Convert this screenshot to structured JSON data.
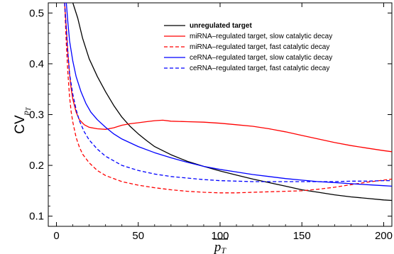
{
  "chart_data": {
    "type": "line",
    "title": "",
    "xlabel": "p_T (mean, overlined)",
    "ylabel": "CV_pT",
    "xlim": [
      -5,
      205
    ],
    "ylim": [
      0.08,
      0.52
    ],
    "xticks": [
      0,
      50,
      100,
      150,
      200
    ],
    "yticks": [
      0.1,
      0.2,
      0.3,
      0.4,
      0.5
    ],
    "xtick_labels": [
      "0",
      "50",
      "100",
      "150",
      "200"
    ],
    "ytick_labels": [
      "0.1",
      "0.2",
      "0.3",
      "0.4",
      "0.5"
    ],
    "legend_position": "top-right",
    "grid": false,
    "series": [
      {
        "name": "unregulated target",
        "color": "#000000",
        "style": "solid",
        "bold_label": true,
        "points": [
          [
            10,
            0.52
          ],
          [
            13,
            0.49
          ],
          [
            16,
            0.45
          ],
          [
            20,
            0.41
          ],
          [
            25,
            0.375
          ],
          [
            30,
            0.345
          ],
          [
            35,
            0.318
          ],
          [
            40,
            0.295
          ],
          [
            45,
            0.277
          ],
          [
            50,
            0.262
          ],
          [
            55,
            0.249
          ],
          [
            60,
            0.237
          ],
          [
            65,
            0.229
          ],
          [
            70,
            0.221
          ],
          [
            80,
            0.208
          ],
          [
            90,
            0.198
          ],
          [
            100,
            0.189
          ],
          [
            110,
            0.181
          ],
          [
            120,
            0.173
          ],
          [
            130,
            0.166
          ],
          [
            140,
            0.159
          ],
          [
            150,
            0.152
          ],
          [
            160,
            0.147
          ],
          [
            170,
            0.142
          ],
          [
            180,
            0.138
          ],
          [
            190,
            0.135
          ],
          [
            200,
            0.132
          ],
          [
            205,
            0.131
          ]
        ]
      },
      {
        "name": "miRNA–regulated target, slow catalytic decay",
        "color": "#ff0000",
        "style": "solid",
        "bold_label": false,
        "points": [
          [
            5,
            0.52
          ],
          [
            6,
            0.47
          ],
          [
            7,
            0.42
          ],
          [
            8,
            0.38
          ],
          [
            9,
            0.35
          ],
          [
            10,
            0.33
          ],
          [
            12,
            0.305
          ],
          [
            14,
            0.29
          ],
          [
            17,
            0.28
          ],
          [
            20,
            0.275
          ],
          [
            25,
            0.272
          ],
          [
            30,
            0.271
          ],
          [
            35,
            0.274
          ],
          [
            40,
            0.279
          ],
          [
            45,
            0.282
          ],
          [
            50,
            0.284
          ],
          [
            55,
            0.286
          ],
          [
            60,
            0.288
          ],
          [
            65,
            0.289
          ],
          [
            70,
            0.287
          ],
          [
            80,
            0.286
          ],
          [
            90,
            0.285
          ],
          [
            100,
            0.283
          ],
          [
            110,
            0.28
          ],
          [
            120,
            0.277
          ],
          [
            130,
            0.272
          ],
          [
            140,
            0.266
          ],
          [
            150,
            0.259
          ],
          [
            160,
            0.252
          ],
          [
            170,
            0.245
          ],
          [
            180,
            0.239
          ],
          [
            190,
            0.234
          ],
          [
            200,
            0.229
          ],
          [
            205,
            0.227
          ]
        ]
      },
      {
        "name": "miRNA–regulated target, fast catalytic decay",
        "color": "#ff0000",
        "style": "dashed",
        "bold_label": false,
        "points": [
          [
            5,
            0.52
          ],
          [
            6,
            0.44
          ],
          [
            7,
            0.38
          ],
          [
            8,
            0.335
          ],
          [
            9,
            0.305
          ],
          [
            10,
            0.285
          ],
          [
            12,
            0.255
          ],
          [
            14,
            0.236
          ],
          [
            16,
            0.222
          ],
          [
            20,
            0.205
          ],
          [
            25,
            0.19
          ],
          [
            30,
            0.18
          ],
          [
            40,
            0.168
          ],
          [
            50,
            0.161
          ],
          [
            60,
            0.156
          ],
          [
            70,
            0.152
          ],
          [
            80,
            0.149
          ],
          [
            90,
            0.147
          ],
          [
            100,
            0.146
          ],
          [
            110,
            0.146
          ],
          [
            120,
            0.147
          ],
          [
            130,
            0.148
          ],
          [
            140,
            0.149
          ],
          [
            150,
            0.15
          ],
          [
            160,
            0.153
          ],
          [
            170,
            0.157
          ],
          [
            180,
            0.162
          ],
          [
            190,
            0.167
          ],
          [
            200,
            0.171
          ],
          [
            205,
            0.173
          ]
        ]
      },
      {
        "name": "ceRNA–regulated target, slow catalytic decay",
        "color": "#0000ff",
        "style": "solid",
        "bold_label": false,
        "points": [
          [
            6,
            0.52
          ],
          [
            7,
            0.48
          ],
          [
            8,
            0.445
          ],
          [
            10,
            0.405
          ],
          [
            12,
            0.375
          ],
          [
            15,
            0.345
          ],
          [
            18,
            0.322
          ],
          [
            21,
            0.305
          ],
          [
            25,
            0.29
          ],
          [
            30,
            0.275
          ],
          [
            35,
            0.262
          ],
          [
            40,
            0.252
          ],
          [
            50,
            0.237
          ],
          [
            60,
            0.225
          ],
          [
            70,
            0.215
          ],
          [
            80,
            0.206
          ],
          [
            90,
            0.198
          ],
          [
            100,
            0.192
          ],
          [
            110,
            0.187
          ],
          [
            120,
            0.182
          ],
          [
            130,
            0.178
          ],
          [
            140,
            0.174
          ],
          [
            150,
            0.171
          ],
          [
            160,
            0.168
          ],
          [
            170,
            0.166
          ],
          [
            180,
            0.164
          ],
          [
            190,
            0.162
          ],
          [
            200,
            0.16
          ],
          [
            205,
            0.159
          ]
        ]
      },
      {
        "name": "ceRNA–regulated target, fast catalytic decay",
        "color": "#0000ff",
        "style": "dashed",
        "bold_label": false,
        "points": [
          [
            5,
            0.52
          ],
          [
            6,
            0.47
          ],
          [
            7,
            0.42
          ],
          [
            8,
            0.38
          ],
          [
            10,
            0.34
          ],
          [
            12,
            0.31
          ],
          [
            14,
            0.288
          ],
          [
            17,
            0.266
          ],
          [
            20,
            0.25
          ],
          [
            25,
            0.232
          ],
          [
            30,
            0.218
          ],
          [
            40,
            0.2
          ],
          [
            50,
            0.19
          ],
          [
            60,
            0.183
          ],
          [
            70,
            0.178
          ],
          [
            80,
            0.175
          ],
          [
            90,
            0.172
          ],
          [
            100,
            0.17
          ],
          [
            110,
            0.169
          ],
          [
            120,
            0.168
          ],
          [
            130,
            0.168
          ],
          [
            140,
            0.168
          ],
          [
            150,
            0.168
          ],
          [
            160,
            0.168
          ],
          [
            170,
            0.168
          ],
          [
            180,
            0.169
          ],
          [
            190,
            0.169
          ],
          [
            200,
            0.17
          ],
          [
            205,
            0.17
          ]
        ]
      }
    ]
  }
}
